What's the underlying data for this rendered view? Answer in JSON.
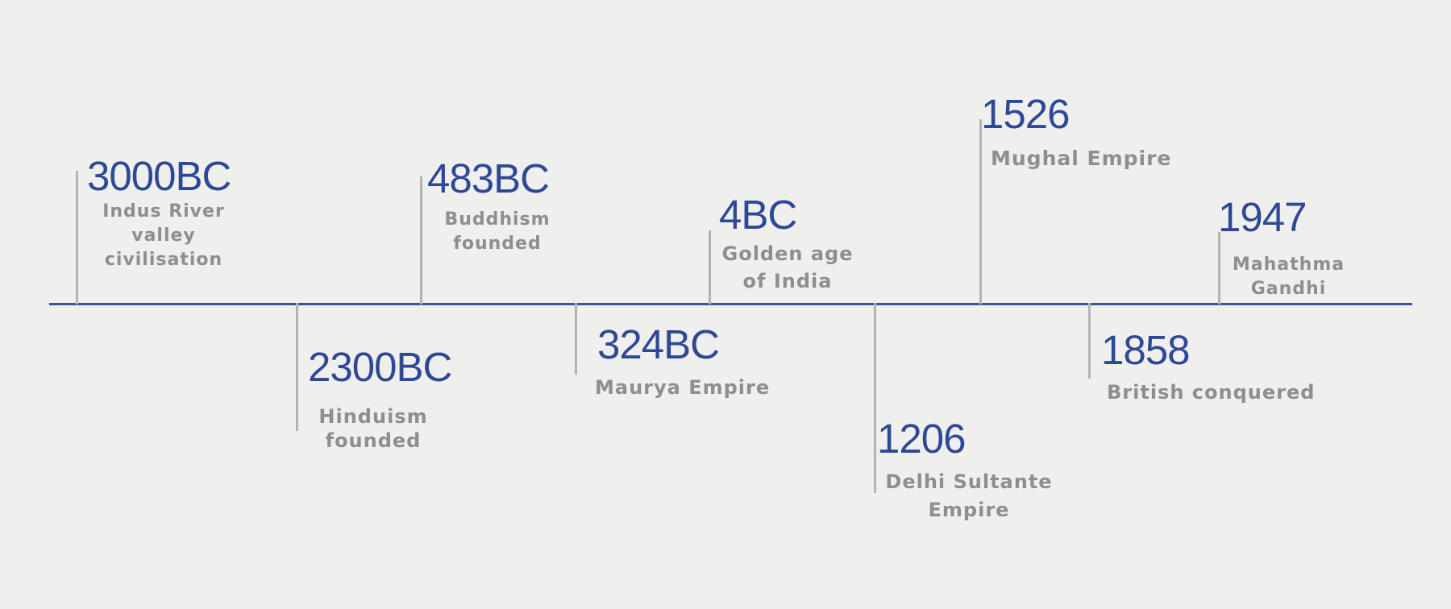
{
  "timeline": {
    "events": [
      {
        "year": "3000BC",
        "label": "Indus River\nvalley\ncivilisation"
      },
      {
        "year": "2300BC",
        "label": "Hinduism\nfounded"
      },
      {
        "year": "483BC",
        "label": "Buddhism\nfounded"
      },
      {
        "year": "324BC",
        "label": "Maurya Empire"
      },
      {
        "year": "4BC",
        "label": "Golden age\nof India"
      },
      {
        "year": "1206",
        "label": "Delhi Sultante\nEmpire"
      },
      {
        "year": "1526",
        "label": "Mughal Empire"
      },
      {
        "year": "1858",
        "label": "British conquered"
      },
      {
        "year": "1947",
        "label": "Mahathma\nGandhi"
      }
    ],
    "colors": {
      "axis": "#3a5499",
      "year_text": "#2e4896",
      "label_text": "#8e8e8e",
      "tick": "#b3b3b3",
      "background": "#eff0ed"
    }
  }
}
